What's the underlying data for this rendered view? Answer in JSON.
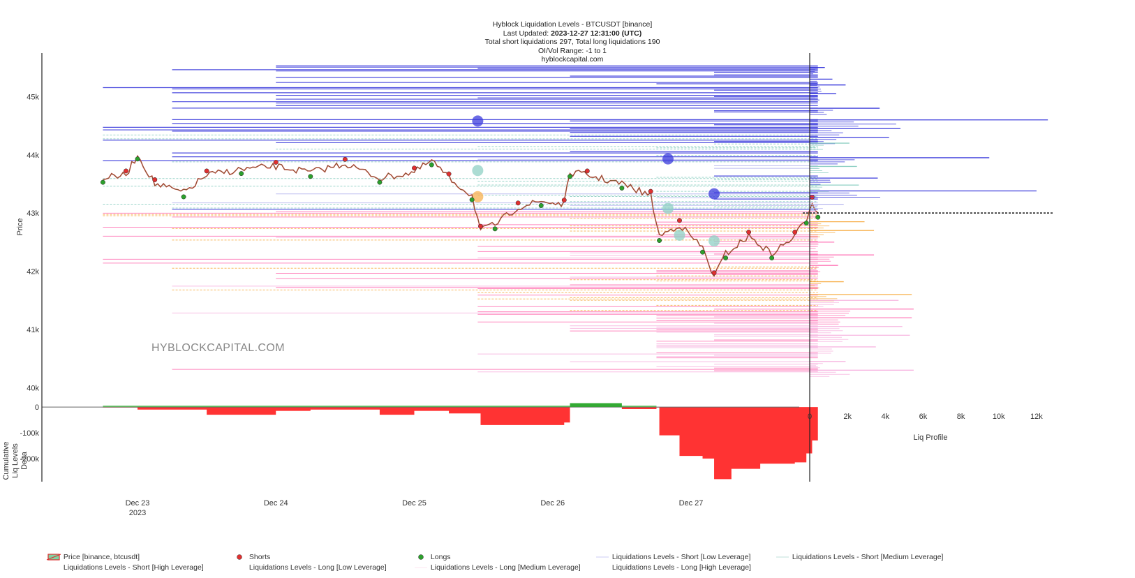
{
  "header": {
    "line1": "Hyblock Liquidation Levels - BTCUSDT [binance]",
    "updated_prefix": "Last Updated: ",
    "updated_value": "2023-12-27 12:31:00 (UTC)",
    "line3": "Total short liquidations 297, Total long liquidations 190",
    "line4": "OI/Vol Range: -1 to 1",
    "line5": "hyblockcapital.com"
  },
  "watermark": "HYBLOCKCAPITAL.COM",
  "colors": {
    "short_high": "#2222dd",
    "short_medium": "#66bbaa",
    "short_low": "#9999ee",
    "long_high": "#f5a0d8",
    "long_medium": "#ff66aa",
    "long_low": "#f5a033",
    "price_up": "#2ca02c",
    "price_down": "#e03030",
    "delta_neg": "#ff3333",
    "delta_pos": "#33aa33"
  },
  "chart_data": [
    {
      "type": "line",
      "name": "price-panel",
      "ylabel": "Price",
      "y_ticks": [
        "40k",
        "41k",
        "42k",
        "43k",
        "44k",
        "45k"
      ],
      "y_tick_values": [
        40000,
        41000,
        42000,
        43000,
        44000,
        45000
      ],
      "ylim": [
        39800,
        45700
      ],
      "x_ticks": [
        "Dec 23",
        "Dec 24",
        "Dec 25",
        "Dec 26",
        "Dec 27"
      ],
      "x_tick_sub": "2023",
      "x_range": [
        "2023-12-22 12:00",
        "2023-12-27 23:00"
      ],
      "current_price": 43000,
      "price": [
        {
          "t": "2023-12-22 18:00",
          "y": 43600
        },
        {
          "t": "2023-12-22 22:00",
          "y": 43650
        },
        {
          "t": "2023-12-23 00:00",
          "y": 44000
        },
        {
          "t": "2023-12-23 03:00",
          "y": 43500
        },
        {
          "t": "2023-12-23 08:00",
          "y": 43350
        },
        {
          "t": "2023-12-23 12:00",
          "y": 43650
        },
        {
          "t": "2023-12-23 18:00",
          "y": 43750
        },
        {
          "t": "2023-12-24 00:00",
          "y": 43800
        },
        {
          "t": "2023-12-24 06:00",
          "y": 43700
        },
        {
          "t": "2023-12-24 12:00",
          "y": 43850
        },
        {
          "t": "2023-12-24 18:00",
          "y": 43600
        },
        {
          "t": "2023-12-25 00:00",
          "y": 43700
        },
        {
          "t": "2023-12-25 03:00",
          "y": 43900
        },
        {
          "t": "2023-12-25 06:00",
          "y": 43600
        },
        {
          "t": "2023-12-25 10:00",
          "y": 43300
        },
        {
          "t": "2023-12-25 11:30",
          "y": 42700
        },
        {
          "t": "2023-12-25 14:00",
          "y": 42800
        },
        {
          "t": "2023-12-25 18:00",
          "y": 43100
        },
        {
          "t": "2023-12-25 22:00",
          "y": 43200
        },
        {
          "t": "2023-12-26 02:00",
          "y": 43150
        },
        {
          "t": "2023-12-26 03:00",
          "y": 43700
        },
        {
          "t": "2023-12-26 06:00",
          "y": 43650
        },
        {
          "t": "2023-12-26 12:00",
          "y": 43500
        },
        {
          "t": "2023-12-26 17:00",
          "y": 43300
        },
        {
          "t": "2023-12-26 18:30",
          "y": 42600
        },
        {
          "t": "2023-12-26 22:00",
          "y": 42800
        },
        {
          "t": "2023-12-27 02:00",
          "y": 42400
        },
        {
          "t": "2023-12-27 04:00",
          "y": 41900
        },
        {
          "t": "2023-12-27 06:00",
          "y": 42300
        },
        {
          "t": "2023-12-27 10:00",
          "y": 42600
        },
        {
          "t": "2023-12-27 14:00",
          "y": 42300
        },
        {
          "t": "2023-12-27 18:00",
          "y": 42600
        },
        {
          "t": "2023-12-27 20:00",
          "y": 42900
        },
        {
          "t": "2023-12-27 21:00",
          "y": 43200
        },
        {
          "t": "2023-12-27 22:00",
          "y": 43000
        }
      ],
      "bubbles": [
        {
          "t": "2023-12-25 11:00",
          "y": 44580,
          "type": "short_high"
        },
        {
          "t": "2023-12-25 11:00",
          "y": 43730,
          "type": "short_medium"
        },
        {
          "t": "2023-12-25 11:00",
          "y": 43280,
          "type": "long_low"
        },
        {
          "t": "2023-12-26 20:00",
          "y": 43930,
          "type": "short_high"
        },
        {
          "t": "2023-12-26 20:00",
          "y": 43080,
          "type": "short_medium"
        },
        {
          "t": "2023-12-27 04:00",
          "y": 43330,
          "type": "short_high"
        },
        {
          "t": "2023-12-27 04:00",
          "y": 42520,
          "type": "short_medium"
        },
        {
          "t": "2023-12-26 22:00",
          "y": 42620,
          "type": "short_medium"
        }
      ]
    },
    {
      "type": "area",
      "name": "cumulative-delta",
      "ylabel": "Cumulative Liq Levels Delta",
      "y_ticks": [
        "0",
        "-100k",
        "-200k"
      ],
      "y_tick_values": [
        0,
        -100000,
        -200000
      ],
      "ylim": [
        -290000,
        30000
      ],
      "series": [
        {
          "t": "2023-12-22 18:00",
          "y": -2000
        },
        {
          "t": "2023-12-23 00:00",
          "y": -10000
        },
        {
          "t": "2023-12-23 12:00",
          "y": -30000
        },
        {
          "t": "2023-12-24 00:00",
          "y": -15000
        },
        {
          "t": "2023-12-24 06:00",
          "y": -10000
        },
        {
          "t": "2023-12-24 18:00",
          "y": -30000
        },
        {
          "t": "2023-12-25 00:00",
          "y": -15000
        },
        {
          "t": "2023-12-25 06:00",
          "y": -25000
        },
        {
          "t": "2023-12-25 11:30",
          "y": -70000
        },
        {
          "t": "2023-12-26 02:00",
          "y": -60000
        },
        {
          "t": "2023-12-26 03:00",
          "y": 20000
        },
        {
          "t": "2023-12-26 10:00",
          "y": 10000
        },
        {
          "t": "2023-12-26 12:00",
          "y": -8000
        },
        {
          "t": "2023-12-26 18:00",
          "y": -2000
        },
        {
          "t": "2023-12-26 18:30",
          "y": -110000
        },
        {
          "t": "2023-12-26 22:00",
          "y": -190000
        },
        {
          "t": "2023-12-27 02:00",
          "y": -200000
        },
        {
          "t": "2023-12-27 04:00",
          "y": -280000
        },
        {
          "t": "2023-12-27 07:00",
          "y": -240000
        },
        {
          "t": "2023-12-27 12:00",
          "y": -220000
        },
        {
          "t": "2023-12-27 18:00",
          "y": -215000
        },
        {
          "t": "2023-12-27 20:00",
          "y": -180000
        },
        {
          "t": "2023-12-27 21:00",
          "y": -130000
        },
        {
          "t": "2023-12-27 22:00",
          "y": -130000
        }
      ]
    },
    {
      "type": "bar",
      "name": "liq-profile",
      "xlabel": "Liq Profile",
      "x_ticks": [
        "0",
        "2k",
        "4k",
        "6k",
        "8k",
        "10k",
        "12k"
      ],
      "x_tick_values": [
        0,
        2000,
        4000,
        6000,
        8000,
        10000,
        12000
      ],
      "xlim": [
        0,
        13000
      ],
      "current_price": 43000,
      "bars": [
        {
          "y": 45500,
          "v": 800,
          "type": "short_high"
        },
        {
          "y": 45300,
          "v": 1200,
          "type": "short_high"
        },
        {
          "y": 45200,
          "v": 1900,
          "type": "short_high"
        },
        {
          "y": 45050,
          "v": 1400,
          "type": "short_high"
        },
        {
          "y": 44800,
          "v": 3700,
          "type": "short_high"
        },
        {
          "y": 44600,
          "v": 12600,
          "type": "short_high"
        },
        {
          "y": 44450,
          "v": 4800,
          "type": "short_high"
        },
        {
          "y": 44300,
          "v": 4200,
          "type": "short_high"
        },
        {
          "y": 44200,
          "v": 2100,
          "type": "short_medium"
        },
        {
          "y": 43950,
          "v": 9500,
          "type": "short_high"
        },
        {
          "y": 43800,
          "v": 2500,
          "type": "short_medium"
        },
        {
          "y": 43600,
          "v": 3600,
          "type": "short_high"
        },
        {
          "y": 43480,
          "v": 2600,
          "type": "short_medium"
        },
        {
          "y": 43380,
          "v": 12000,
          "type": "short_high"
        },
        {
          "y": 43150,
          "v": 1800,
          "type": "short_low"
        },
        {
          "y": 42850,
          "v": 2900,
          "type": "long_low"
        },
        {
          "y": 42700,
          "v": 3400,
          "type": "long_low"
        },
        {
          "y": 42500,
          "v": 1300,
          "type": "long_medium"
        },
        {
          "y": 42280,
          "v": 3400,
          "type": "long_medium"
        },
        {
          "y": 42100,
          "v": 1500,
          "type": "long_medium"
        },
        {
          "y": 41820,
          "v": 1800,
          "type": "long_low"
        },
        {
          "y": 41600,
          "v": 5400,
          "type": "long_low"
        },
        {
          "y": 41500,
          "v": 4700,
          "type": "long_high"
        },
        {
          "y": 41350,
          "v": 5500,
          "type": "long_medium"
        },
        {
          "y": 41200,
          "v": 5400,
          "type": "long_medium"
        },
        {
          "y": 41050,
          "v": 4900,
          "type": "long_high"
        },
        {
          "y": 40900,
          "v": 5300,
          "type": "long_high"
        },
        {
          "y": 40700,
          "v": 3500,
          "type": "long_high"
        },
        {
          "y": 40450,
          "v": 1900,
          "type": "long_high"
        },
        {
          "y": 40300,
          "v": 5500,
          "type": "long_high"
        }
      ]
    }
  ],
  "legend": {
    "items": [
      {
        "label": "Price [binance, btcusdt]",
        "key": "price"
      },
      {
        "label": "Shorts",
        "key": "shorts"
      },
      {
        "label": "Longs",
        "key": "longs"
      },
      {
        "label": "Liquidations Levels - Short [Low Leverage]",
        "key": "short_low"
      },
      {
        "label": "Liquidations Levels - Short [Medium Leverage]",
        "key": "short_medium"
      },
      {
        "label": "Liquidations Levels - Short [High Leverage]",
        "key": "short_high"
      },
      {
        "label": "Liquidations Levels - Long [Low Leverage]",
        "key": "long_low"
      },
      {
        "label": "Liquidations Levels - Long [Medium Leverage]",
        "key": "long_medium"
      },
      {
        "label": "Liquidations Levels - Long [High Leverage]",
        "key": "long_high"
      }
    ]
  }
}
